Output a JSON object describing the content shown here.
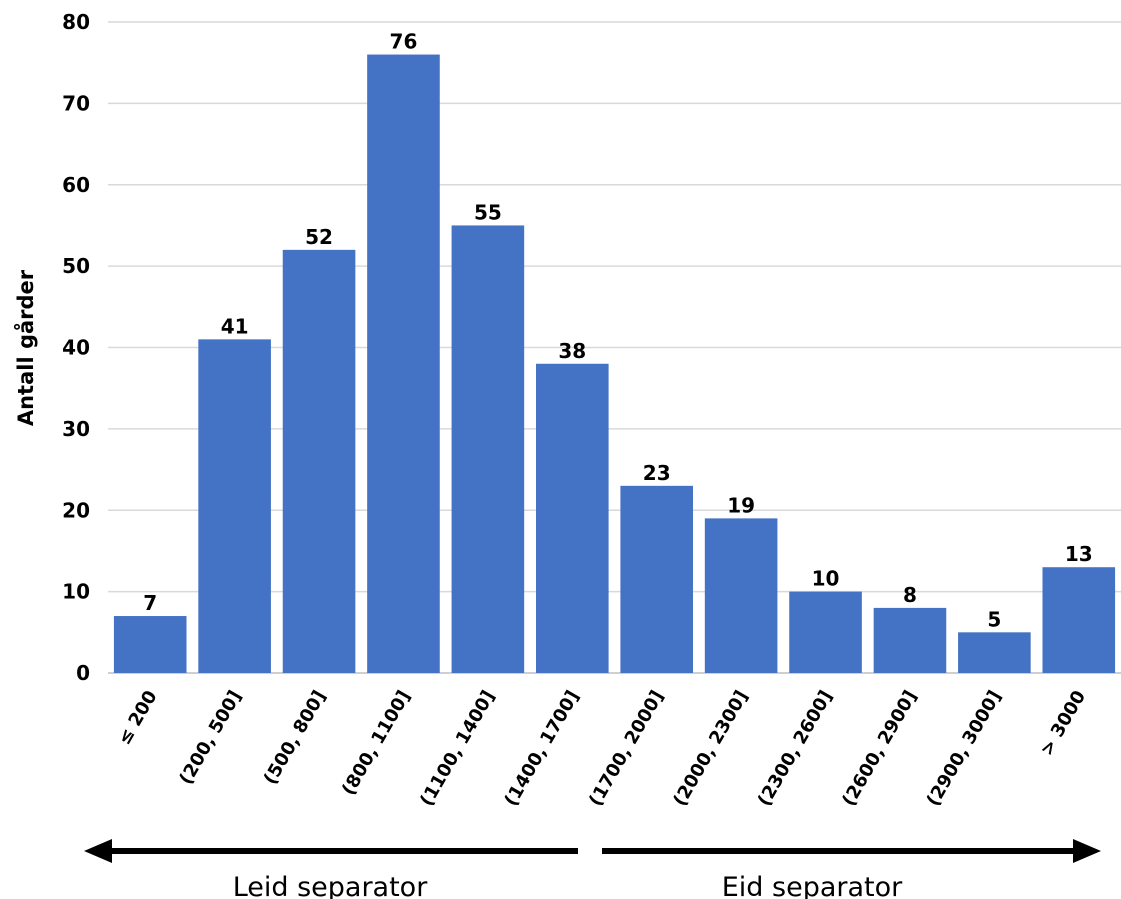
{
  "chart_data": {
    "type": "bar",
    "categories": [
      "≤ 200",
      "(200, 500]",
      "(500, 800]",
      "(800, 1100]",
      "(1100, 1400]",
      "(1400, 1700]",
      "(1700, 2000]",
      "(2000, 2300]",
      "(2300, 2600]",
      "(2600, 2900]",
      "(2900, 3000]",
      "> 3000"
    ],
    "values": [
      7,
      41,
      52,
      76,
      55,
      38,
      23,
      19,
      10,
      8,
      5,
      13
    ],
    "data_labels": [
      "7",
      "41",
      "52",
      "76",
      "55",
      "38",
      "23",
      "19",
      "10",
      "8",
      "5",
      "13"
    ],
    "title": "",
    "xlabel": "",
    "ylabel": "Antall gårder",
    "ylim": [
      0,
      80
    ],
    "yticks": [
      "0",
      "10",
      "20",
      "30",
      "40",
      "50",
      "60",
      "70",
      "80"
    ],
    "grid": true,
    "bar_color": "#4472c4",
    "annotations": [
      {
        "text": "Leid separator",
        "arrow": "left"
      },
      {
        "text": "Eid separator",
        "arrow": "right"
      }
    ]
  }
}
